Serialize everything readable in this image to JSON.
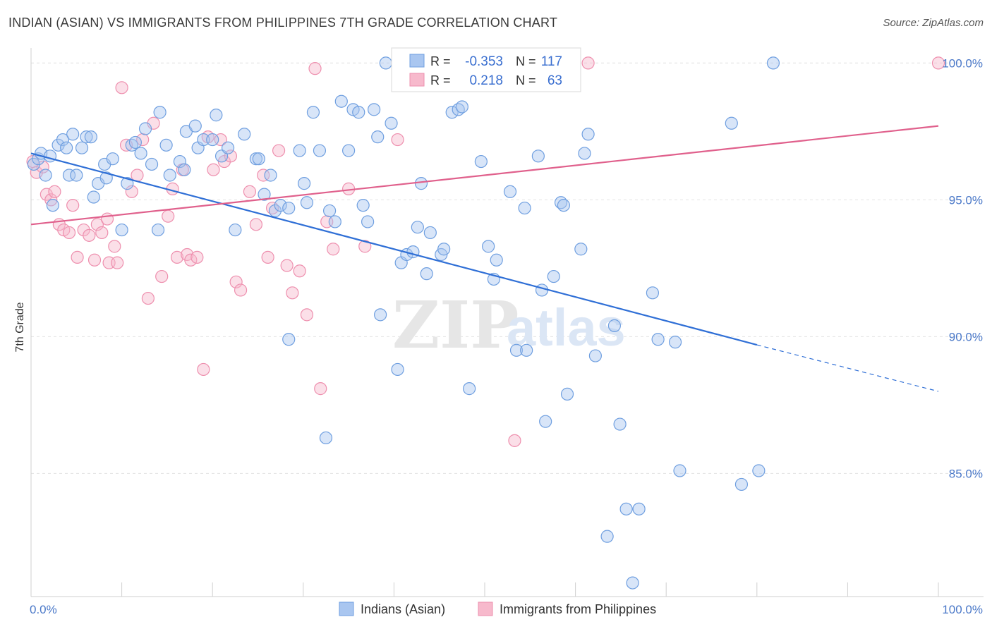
{
  "title": "INDIAN (ASIAN) VS IMMIGRANTS FROM PHILIPPINES 7TH GRADE CORRELATION CHART",
  "source": "Source: ZipAtlas.com",
  "watermark": {
    "zip": "ZIP",
    "atlas": "atlas"
  },
  "colors": {
    "blue_fill": "#a9c6f0",
    "blue_stroke": "#6f9fe0",
    "blue_line": "#2f6fd6",
    "pink_fill": "#f7b9cc",
    "pink_stroke": "#ee8fae",
    "pink_line": "#e0608c",
    "tick_text": "#4a78c8",
    "grid": "#e3e3e3"
  },
  "legend": {
    "rows": [
      {
        "r_label": "R =",
        "r_value": "-0.353",
        "n_label": "N =",
        "n_value": "117"
      },
      {
        "r_label": "R =",
        "r_value": "0.218",
        "n_label": "N =",
        "n_value": "63"
      }
    ]
  },
  "bottom_legend": [
    "Indians (Asian)",
    "Immigrants from Philippines"
  ],
  "chart_data": {
    "type": "scatter",
    "title": "INDIAN (ASIAN) VS IMMIGRANTS FROM PHILIPPINES 7TH GRADE CORRELATION CHART",
    "xlabel": "",
    "ylabel": "7th Grade",
    "xlim": [
      0,
      100
    ],
    "ylim": [
      80.5,
      100.5
    ],
    "x_tick_labels": [
      "0.0%",
      "100.0%"
    ],
    "y_ticks": [
      85,
      90,
      95,
      100
    ],
    "y_tick_labels": [
      "85.0%",
      "90.0%",
      "95.0%",
      "100.0%"
    ],
    "grid": true,
    "legend_placement": "top-center",
    "series": [
      {
        "name": "Indians (Asian)",
        "color": "#a9c6f0",
        "r": -0.353,
        "n": 117,
        "trend": {
          "x": [
            0,
            80,
            100
          ],
          "y": [
            96.7,
            89.7,
            88.0
          ],
          "dashed_from_x": 80
        },
        "points": [
          [
            0.3,
            96.3
          ],
          [
            0.8,
            96.5
          ],
          [
            1.1,
            96.7
          ],
          [
            1.6,
            95.9
          ],
          [
            2.1,
            96.6
          ],
          [
            2.4,
            94.8
          ],
          [
            3.0,
            97.0
          ],
          [
            3.5,
            97.2
          ],
          [
            3.9,
            96.9
          ],
          [
            4.2,
            95.9
          ],
          [
            4.6,
            97.4
          ],
          [
            5.0,
            95.9
          ],
          [
            5.6,
            96.9
          ],
          [
            6.1,
            97.3
          ],
          [
            6.6,
            97.3
          ],
          [
            6.9,
            95.1
          ],
          [
            7.4,
            95.6
          ],
          [
            8.1,
            96.3
          ],
          [
            8.3,
            95.8
          ],
          [
            9.0,
            96.5
          ],
          [
            10.0,
            93.9
          ],
          [
            10.6,
            95.6
          ],
          [
            11.1,
            97.0
          ],
          [
            11.5,
            97.1
          ],
          [
            12.1,
            96.7
          ],
          [
            12.6,
            97.6
          ],
          [
            13.3,
            96.3
          ],
          [
            14.0,
            93.9
          ],
          [
            14.2,
            98.2
          ],
          [
            14.9,
            97.0
          ],
          [
            15.3,
            95.9
          ],
          [
            16.4,
            96.4
          ],
          [
            16.9,
            96.1
          ],
          [
            17.1,
            97.5
          ],
          [
            18.1,
            97.7
          ],
          [
            18.4,
            96.9
          ],
          [
            19.0,
            97.2
          ],
          [
            20.0,
            97.2
          ],
          [
            20.4,
            98.1
          ],
          [
            21.0,
            96.6
          ],
          [
            21.7,
            96.9
          ],
          [
            22.5,
            93.9
          ],
          [
            23.5,
            97.4
          ],
          [
            24.8,
            96.5
          ],
          [
            25.1,
            96.5
          ],
          [
            25.7,
            95.2
          ],
          [
            26.4,
            95.9
          ],
          [
            26.9,
            94.6
          ],
          [
            27.5,
            94.8
          ],
          [
            28.4,
            94.7
          ],
          [
            28.4,
            89.9
          ],
          [
            29.6,
            96.8
          ],
          [
            30.1,
            95.6
          ],
          [
            30.4,
            94.9
          ],
          [
            31.1,
            98.2
          ],
          [
            31.8,
            96.8
          ],
          [
            32.5,
            86.3
          ],
          [
            32.9,
            94.6
          ],
          [
            33.5,
            94.2
          ],
          [
            34.2,
            98.6
          ],
          [
            35.0,
            96.8
          ],
          [
            35.5,
            98.3
          ],
          [
            36.1,
            98.2
          ],
          [
            36.6,
            94.8
          ],
          [
            37.1,
            94.2
          ],
          [
            37.8,
            98.3
          ],
          [
            38.2,
            97.3
          ],
          [
            38.5,
            90.8
          ],
          [
            39.1,
            100.0
          ],
          [
            39.7,
            97.8
          ],
          [
            40.4,
            88.8
          ],
          [
            40.8,
            92.7
          ],
          [
            41.4,
            93.0
          ],
          [
            42.1,
            93.1
          ],
          [
            42.6,
            94.0
          ],
          [
            43.0,
            95.6
          ],
          [
            43.6,
            92.3
          ],
          [
            44.0,
            93.8
          ],
          [
            45.2,
            93.0
          ],
          [
            45.5,
            93.2
          ],
          [
            46.4,
            98.2
          ],
          [
            47.1,
            98.3
          ],
          [
            47.5,
            98.4
          ],
          [
            48.3,
            88.1
          ],
          [
            48.8,
            100.0
          ],
          [
            49.6,
            96.4
          ],
          [
            50.4,
            93.3
          ],
          [
            51.0,
            92.1
          ],
          [
            51.3,
            92.8
          ],
          [
            52.8,
            95.3
          ],
          [
            53.5,
            89.5
          ],
          [
            54.4,
            94.7
          ],
          [
            54.6,
            89.5
          ],
          [
            55.9,
            96.6
          ],
          [
            56.3,
            91.7
          ],
          [
            56.7,
            86.9
          ],
          [
            57.6,
            92.2
          ],
          [
            58.4,
            94.9
          ],
          [
            58.7,
            94.8
          ],
          [
            59.1,
            87.9
          ],
          [
            60.6,
            93.2
          ],
          [
            61.0,
            96.7
          ],
          [
            61.4,
            97.4
          ],
          [
            62.2,
            89.3
          ],
          [
            63.5,
            82.7
          ],
          [
            64.3,
            90.4
          ],
          [
            64.9,
            86.8
          ],
          [
            65.6,
            83.7
          ],
          [
            66.3,
            81.0
          ],
          [
            67.0,
            83.7
          ],
          [
            68.5,
            91.6
          ],
          [
            69.1,
            89.9
          ],
          [
            71.0,
            89.8
          ],
          [
            71.5,
            85.1
          ],
          [
            77.2,
            97.8
          ],
          [
            78.3,
            84.6
          ],
          [
            80.2,
            85.1
          ],
          [
            81.8,
            100.0
          ]
        ]
      },
      {
        "name": "Immigrants from Philippines",
        "color": "#f7b9cc",
        "r": 0.218,
        "n": 63,
        "trend": {
          "x": [
            0,
            100
          ],
          "y": [
            94.1,
            97.7
          ]
        },
        "points": [
          [
            0.2,
            96.4
          ],
          [
            0.6,
            96.0
          ],
          [
            1.3,
            96.2
          ],
          [
            1.7,
            95.2
          ],
          [
            2.2,
            95.0
          ],
          [
            2.6,
            95.3
          ],
          [
            3.1,
            94.1
          ],
          [
            3.6,
            93.9
          ],
          [
            4.2,
            93.8
          ],
          [
            4.6,
            94.8
          ],
          [
            5.1,
            92.9
          ],
          [
            5.8,
            93.9
          ],
          [
            6.4,
            93.7
          ],
          [
            7.0,
            92.8
          ],
          [
            7.3,
            94.1
          ],
          [
            7.8,
            93.8
          ],
          [
            8.4,
            94.3
          ],
          [
            8.6,
            92.7
          ],
          [
            9.2,
            93.3
          ],
          [
            9.5,
            92.7
          ],
          [
            10.0,
            99.1
          ],
          [
            10.5,
            97.0
          ],
          [
            11.1,
            95.3
          ],
          [
            11.7,
            95.9
          ],
          [
            12.3,
            97.2
          ],
          [
            12.9,
            91.4
          ],
          [
            13.5,
            97.8
          ],
          [
            14.4,
            92.2
          ],
          [
            15.1,
            94.4
          ],
          [
            15.6,
            95.4
          ],
          [
            16.1,
            92.9
          ],
          [
            16.7,
            96.1
          ],
          [
            17.2,
            93.0
          ],
          [
            17.6,
            92.8
          ],
          [
            18.3,
            92.9
          ],
          [
            19.0,
            88.8
          ],
          [
            19.5,
            97.3
          ],
          [
            20.1,
            96.1
          ],
          [
            20.9,
            97.2
          ],
          [
            21.3,
            96.4
          ],
          [
            22.0,
            96.6
          ],
          [
            22.6,
            92.0
          ],
          [
            23.1,
            91.7
          ],
          [
            24.1,
            95.3
          ],
          [
            24.8,
            94.1
          ],
          [
            25.6,
            95.9
          ],
          [
            26.1,
            92.9
          ],
          [
            26.6,
            94.7
          ],
          [
            27.3,
            96.8
          ],
          [
            28.2,
            92.6
          ],
          [
            28.8,
            91.6
          ],
          [
            29.6,
            92.4
          ],
          [
            30.4,
            90.8
          ],
          [
            31.3,
            99.8
          ],
          [
            31.9,
            88.1
          ],
          [
            32.6,
            94.2
          ],
          [
            33.3,
            93.2
          ],
          [
            35.0,
            95.4
          ],
          [
            36.8,
            93.3
          ],
          [
            40.4,
            97.2
          ],
          [
            53.3,
            86.2
          ],
          [
            61.4,
            100.0
          ],
          [
            100.0,
            100.0
          ]
        ]
      }
    ]
  }
}
